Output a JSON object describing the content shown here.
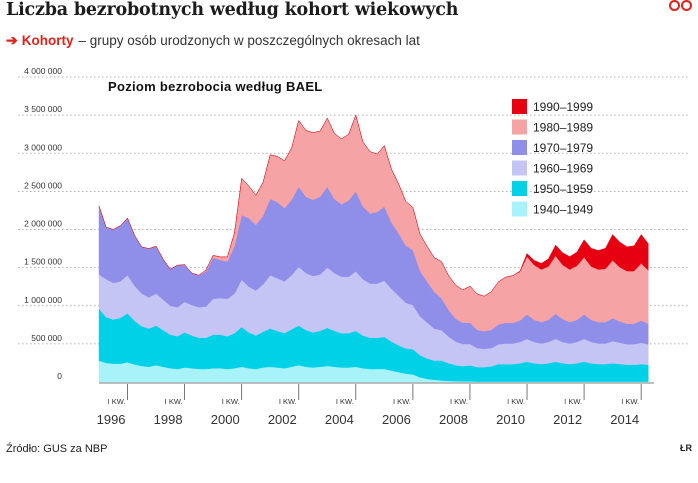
{
  "header": {
    "title": "Liczba bezrobotnych według kohort wiekowych",
    "subtitle_arrow": "➔",
    "subtitle_key": "Kohorty",
    "subtitle_text": "– grupy osób urodzonych w poszczególnych okresach lat",
    "logo_colors": [
      "#e32119"
    ]
  },
  "footer": {
    "source": "Źródło: GUS za NBP",
    "credit": "ŁR"
  },
  "chart_data": {
    "type": "area",
    "stacked": true,
    "title": "Poziom bezrobocia według BAEL",
    "xlabel": "",
    "ylabel": "",
    "ylim": [
      0,
      4000000
    ],
    "yticks": [
      0,
      500000,
      1000000,
      1500000,
      2000000,
      2500000,
      3000000,
      3500000,
      4000000
    ],
    "ytick_labels": [
      "0",
      "500 000",
      "1 000 000",
      "1 500 000",
      "2 000 000",
      "2 500 000",
      "3 000 000",
      "3 500 000",
      "4 000 000"
    ],
    "x_marker_label": "I KW.",
    "x_year_labels": [
      "1996",
      "1998",
      "2000",
      "2002",
      "2004",
      "2006",
      "2008",
      "2010",
      "2012",
      "2014"
    ],
    "x_year_values": [
      1996,
      1998,
      2000,
      2002,
      2004,
      2006,
      2008,
      2010,
      2012,
      2014
    ],
    "xlim": [
      1995.0,
      2014.45
    ],
    "x": [
      1995.0,
      1995.25,
      1995.5,
      1995.75,
      1996.0,
      1996.25,
      1996.5,
      1996.75,
      1997.0,
      1997.25,
      1997.5,
      1997.75,
      1998.0,
      1998.25,
      1998.5,
      1998.75,
      1999.0,
      1999.25,
      1999.5,
      1999.75,
      2000.0,
      2000.25,
      2000.5,
      2000.75,
      2001.0,
      2001.25,
      2001.5,
      2001.75,
      2002.0,
      2002.25,
      2002.5,
      2002.75,
      2003.0,
      2003.25,
      2003.5,
      2003.75,
      2004.0,
      2004.25,
      2004.5,
      2004.75,
      2005.0,
      2005.25,
      2005.5,
      2005.75,
      2006.0,
      2006.25,
      2006.5,
      2006.75,
      2007.0,
      2007.25,
      2007.5,
      2007.75,
      2008.0,
      2008.25,
      2008.5,
      2008.75,
      2009.0,
      2009.25,
      2009.5,
      2009.75,
      2010.0,
      2010.25,
      2010.5,
      2010.75,
      2011.0,
      2011.25,
      2011.5,
      2011.75,
      2012.0,
      2012.25,
      2012.5,
      2012.75,
      2013.0,
      2013.25,
      2013.5,
      2013.75,
      2014.0,
      2014.25
    ],
    "series": [
      {
        "name": "1940–1949",
        "color": "#a8f2fa",
        "values": [
          280000,
          250000,
          240000,
          240000,
          260000,
          230000,
          210000,
          200000,
          220000,
          200000,
          180000,
          170000,
          190000,
          180000,
          170000,
          170000,
          180000,
          180000,
          170000,
          180000,
          200000,
          180000,
          170000,
          190000,
          200000,
          190000,
          180000,
          200000,
          220000,
          200000,
          190000,
          200000,
          210000,
          200000,
          190000,
          190000,
          200000,
          180000,
          170000,
          170000,
          170000,
          150000,
          130000,
          110000,
          100000,
          60000,
          40000,
          30000,
          20000,
          15000,
          10000,
          8000,
          8000,
          5000,
          5000,
          5000,
          5000,
          5000,
          5000,
          5000,
          5000,
          5000,
          5000,
          5000,
          5000,
          5000,
          5000,
          5000,
          5000,
          5000,
          5000,
          5000,
          5000,
          5000,
          5000,
          5000,
          5000,
          5000
        ]
      },
      {
        "name": "1950–1959",
        "color": "#00d1e6",
        "values": [
          680000,
          600000,
          580000,
          600000,
          640000,
          570000,
          520000,
          500000,
          520000,
          480000,
          440000,
          430000,
          460000,
          430000,
          410000,
          410000,
          440000,
          440000,
          430000,
          460000,
          520000,
          470000,
          440000,
          470000,
          500000,
          480000,
          460000,
          490000,
          520000,
          480000,
          460000,
          470000,
          500000,
          470000,
          450000,
          450000,
          470000,
          430000,
          410000,
          410000,
          420000,
          380000,
          350000,
          330000,
          330000,
          290000,
          270000,
          250000,
          260000,
          230000,
          210000,
          200000,
          210000,
          190000,
          190000,
          200000,
          230000,
          230000,
          230000,
          240000,
          260000,
          240000,
          230000,
          240000,
          260000,
          240000,
          230000,
          240000,
          260000,
          240000,
          230000,
          230000,
          240000,
          230000,
          220000,
          220000,
          230000,
          220000
        ]
      },
      {
        "name": "1960–1969",
        "color": "#c4c4f5",
        "values": [
          450000,
          500000,
          480000,
          480000,
          500000,
          460000,
          430000,
          410000,
          420000,
          400000,
          380000,
          380000,
          400000,
          400000,
          400000,
          410000,
          470000,
          480000,
          490000,
          520000,
          620000,
          600000,
          590000,
          620000,
          700000,
          690000,
          680000,
          710000,
          770000,
          750000,
          740000,
          740000,
          790000,
          760000,
          740000,
          740000,
          780000,
          740000,
          710000,
          710000,
          740000,
          690000,
          650000,
          600000,
          580000,
          510000,
          470000,
          420000,
          400000,
          350000,
          310000,
          290000,
          280000,
          250000,
          240000,
          240000,
          260000,
          270000,
          270000,
          280000,
          300000,
          280000,
          270000,
          280000,
          300000,
          280000,
          270000,
          280000,
          300000,
          280000,
          270000,
          270000,
          290000,
          280000,
          270000,
          270000,
          280000,
          270000
        ]
      },
      {
        "name": "1970–1979",
        "color": "#8f8ee8",
        "values": [
          900000,
          680000,
          700000,
          730000,
          750000,
          660000,
          610000,
          640000,
          620000,
          530000,
          480000,
          550000,
          490000,
          420000,
          420000,
          460000,
          540000,
          500000,
          490000,
          620000,
          850000,
          900000,
          860000,
          900000,
          1000000,
          1000000,
          960000,
          990000,
          1050000,
          1000000,
          1000000,
          1020000,
          1060000,
          970000,
          950000,
          1000000,
          1050000,
          950000,
          920000,
          940000,
          970000,
          870000,
          820000,
          750000,
          720000,
          600000,
          540000,
          480000,
          420000,
          350000,
          300000,
          280000,
          280000,
          240000,
          230000,
          240000,
          260000,
          270000,
          270000,
          280000,
          320000,
          290000,
          280000,
          290000,
          330000,
          300000,
          280000,
          290000,
          320000,
          290000,
          280000,
          280000,
          300000,
          280000,
          270000,
          270000,
          290000,
          270000
        ]
      },
      {
        "name": "1980–1989",
        "color": "#f5a3a5",
        "values": [
          0,
          0,
          0,
          0,
          0,
          0,
          0,
          0,
          0,
          0,
          0,
          0,
          0,
          0,
          0,
          20000,
          30000,
          40000,
          60000,
          180000,
          480000,
          420000,
          390000,
          440000,
          580000,
          600000,
          620000,
          680000,
          870000,
          870000,
          880000,
          860000,
          900000,
          860000,
          860000,
          870000,
          1000000,
          850000,
          810000,
          760000,
          800000,
          700000,
          650000,
          580000,
          560000,
          480000,
          460000,
          450000,
          480000,
          450000,
          440000,
          430000,
          480000,
          470000,
          460000,
          500000,
          560000,
          600000,
          620000,
          640000,
          760000,
          720000,
          690000,
          700000,
          760000,
          710000,
          690000,
          710000,
          750000,
          700000,
          690000,
          700000,
          760000,
          710000,
          690000,
          690000,
          750000,
          700000
        ]
      },
      {
        "name": "1990–1999",
        "color": "#e60012",
        "values": [
          0,
          0,
          0,
          0,
          0,
          0,
          0,
          0,
          0,
          0,
          0,
          0,
          0,
          0,
          0,
          0,
          0,
          0,
          0,
          0,
          0,
          0,
          0,
          0,
          0,
          0,
          0,
          0,
          0,
          0,
          0,
          0,
          0,
          0,
          0,
          0,
          0,
          0,
          0,
          0,
          0,
          0,
          0,
          0,
          0,
          0,
          0,
          0,
          0,
          0,
          0,
          0,
          0,
          0,
          0,
          0,
          0,
          0,
          0,
          10000,
          40000,
          60000,
          80000,
          100000,
          140000,
          160000,
          170000,
          180000,
          230000,
          240000,
          250000,
          270000,
          340000,
          330000,
          320000,
          330000,
          380000,
          350000
        ]
      }
    ],
    "legend_position": "top-right",
    "grid": "horizontal-dotted"
  }
}
